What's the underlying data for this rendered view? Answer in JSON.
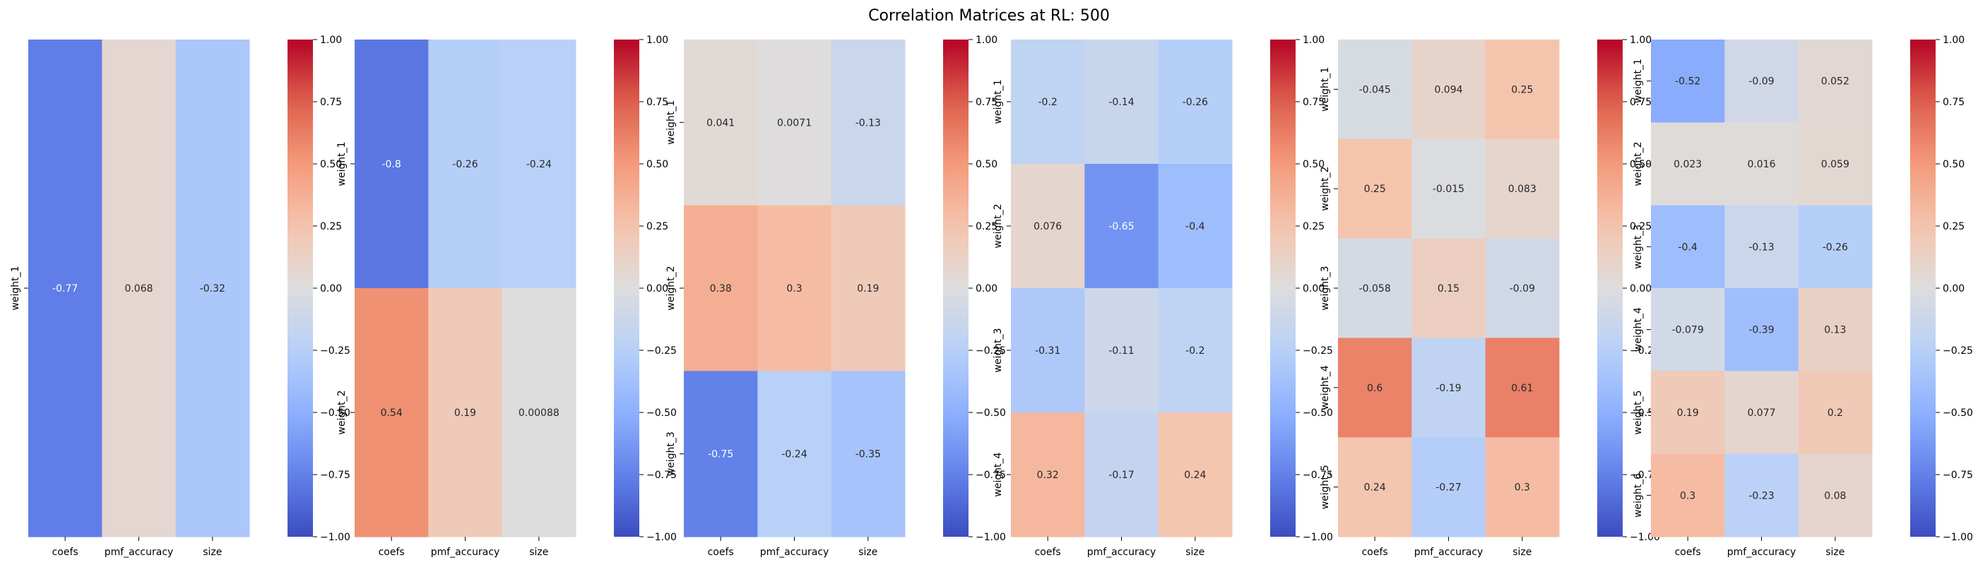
{
  "title": "Correlation Matrices at RL: 500",
  "chart_data": [
    {
      "type": "heatmap",
      "title": "",
      "x_categories": [
        "coefs",
        "pmf_accuracy",
        "size"
      ],
      "y_categories": [
        "weight_1"
      ],
      "values": [
        [
          -0.77,
          0.068,
          -0.32
        ]
      ],
      "labels": [
        [
          "-0.77",
          "0.068",
          "-0.32"
        ]
      ],
      "colormap": "coolwarm",
      "vmin": -1,
      "vmax": 1,
      "colorbar_ticks": [
        "−1.00",
        "−0.75",
        "−0.50",
        "−0.25",
        "0.00",
        "0.25",
        "0.50",
        "0.75",
        "1.00"
      ]
    },
    {
      "type": "heatmap",
      "title": "",
      "x_categories": [
        "coefs",
        "pmf_accuracy",
        "size"
      ],
      "y_categories": [
        "weight_1",
        "weight_2"
      ],
      "values": [
        [
          -0.8,
          -0.26,
          -0.24
        ],
        [
          0.54,
          0.19,
          0.00088
        ]
      ],
      "labels": [
        [
          "-0.8",
          "-0.26",
          "-0.24"
        ],
        [
          "0.54",
          "0.19",
          "0.00088"
        ]
      ],
      "colormap": "coolwarm",
      "vmin": -1,
      "vmax": 1,
      "colorbar_ticks": [
        "−1.00",
        "−0.75",
        "−0.50",
        "−0.25",
        "0.00",
        "0.25",
        "0.50",
        "0.75",
        "1.00"
      ]
    },
    {
      "type": "heatmap",
      "title": "",
      "x_categories": [
        "coefs",
        "pmf_accuracy",
        "size"
      ],
      "y_categories": [
        "weight_1",
        "weight_2",
        "weight_3"
      ],
      "values": [
        [
          0.041,
          0.0071,
          -0.13
        ],
        [
          0.38,
          0.3,
          0.19
        ],
        [
          -0.75,
          -0.24,
          -0.35
        ]
      ],
      "labels": [
        [
          "0.041",
          "0.0071",
          "-0.13"
        ],
        [
          "0.38",
          "0.3",
          "0.19"
        ],
        [
          "-0.75",
          "-0.24",
          "-0.35"
        ]
      ],
      "colormap": "coolwarm",
      "vmin": -1,
      "vmax": 1,
      "colorbar_ticks": [
        "−1.00",
        "−0.75",
        "−0.50",
        "−0.25",
        "0.00",
        "0.25",
        "0.50",
        "0.75",
        "1.00"
      ]
    },
    {
      "type": "heatmap",
      "title": "",
      "x_categories": [
        "coefs",
        "pmf_accuracy",
        "size"
      ],
      "y_categories": [
        "weight_1",
        "weight_2",
        "weight_3",
        "weight_4"
      ],
      "values": [
        [
          -0.2,
          -0.14,
          -0.26
        ],
        [
          0.076,
          -0.65,
          -0.4
        ],
        [
          -0.31,
          -0.11,
          -0.2
        ],
        [
          0.32,
          -0.17,
          0.24
        ]
      ],
      "labels": [
        [
          "-0.2",
          "-0.14",
          "-0.26"
        ],
        [
          "0.076",
          "-0.65",
          "-0.4"
        ],
        [
          "-0.31",
          "-0.11",
          "-0.2"
        ],
        [
          "0.32",
          "-0.17",
          "0.24"
        ]
      ],
      "colormap": "coolwarm",
      "vmin": -1,
      "vmax": 1,
      "colorbar_ticks": [
        "−1.00",
        "−0.75",
        "−0.50",
        "−0.25",
        "0.00",
        "0.25",
        "0.50",
        "0.75",
        "1.00"
      ]
    },
    {
      "type": "heatmap",
      "title": "",
      "x_categories": [
        "coefs",
        "pmf_accuracy",
        "size"
      ],
      "y_categories": [
        "weight_1",
        "weight_2",
        "weight_3",
        "weight_4",
        "weight_5"
      ],
      "values": [
        [
          -0.045,
          0.094,
          0.25
        ],
        [
          0.25,
          -0.015,
          0.083
        ],
        [
          -0.058,
          0.15,
          -0.09
        ],
        [
          0.6,
          -0.19,
          0.61
        ],
        [
          0.24,
          -0.27,
          0.3
        ]
      ],
      "labels": [
        [
          "-0.045",
          "0.094",
          "0.25"
        ],
        [
          "0.25",
          "-0.015",
          "0.083"
        ],
        [
          "-0.058",
          "0.15",
          "-0.09"
        ],
        [
          "0.6",
          "-0.19",
          "0.61"
        ],
        [
          "0.24",
          "-0.27",
          "0.3"
        ]
      ],
      "colormap": "coolwarm",
      "vmin": -1,
      "vmax": 1,
      "colorbar_ticks": [
        "−1.00",
        "−0.75",
        "−0.50",
        "−0.25",
        "0.00",
        "0.25",
        "0.50",
        "0.75",
        "1.00"
      ]
    },
    {
      "type": "heatmap",
      "title": "",
      "x_categories": [
        "coefs",
        "pmf_accuracy",
        "size"
      ],
      "y_categories": [
        "weight_1",
        "weight_2",
        "weight_3",
        "weight_4",
        "weight_5",
        "weight_6"
      ],
      "values": [
        [
          -0.52,
          -0.09,
          0.052
        ],
        [
          0.023,
          0.016,
          0.059
        ],
        [
          -0.4,
          -0.13,
          -0.26
        ],
        [
          -0.079,
          -0.39,
          0.13
        ],
        [
          0.19,
          0.077,
          0.2
        ],
        [
          0.3,
          -0.23,
          0.08
        ]
      ],
      "labels": [
        [
          "-0.52",
          "-0.09",
          "0.052"
        ],
        [
          "0.023",
          "0.016",
          "0.059"
        ],
        [
          "-0.4",
          "-0.13",
          "-0.26"
        ],
        [
          "-0.079",
          "-0.39",
          "0.13"
        ],
        [
          "0.19",
          "0.077",
          "0.2"
        ],
        [
          "0.3",
          "-0.23",
          "0.08"
        ]
      ],
      "colormap": "coolwarm",
      "vmin": -1,
      "vmax": 1,
      "colorbar_ticks": [
        "−1.00",
        "−0.75",
        "−0.50",
        "−0.25",
        "0.00",
        "0.25",
        "0.50",
        "0.75",
        "1.00"
      ]
    }
  ]
}
